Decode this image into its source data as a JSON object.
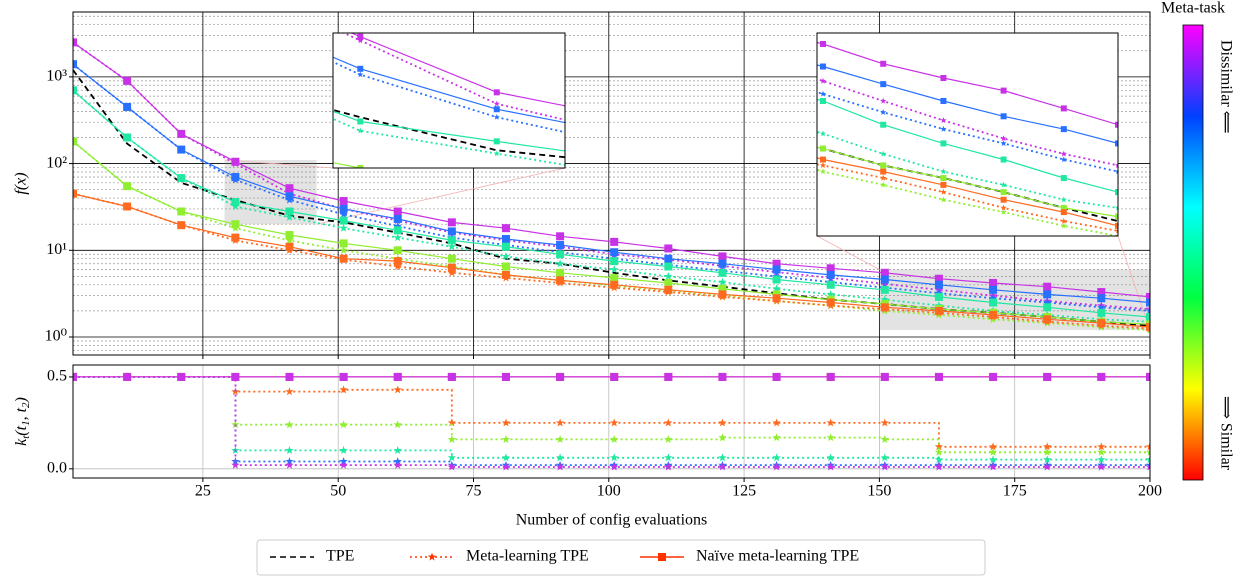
{
  "chart_data": [
    {
      "type": "line",
      "ylabel": "f(x)",
      "xlim": [
        1,
        200
      ],
      "ylim": [
        0.62,
        5600
      ],
      "log_y": true,
      "grid": true,
      "legend": "bottom",
      "xticks": [
        25,
        50,
        75,
        100,
        125,
        150,
        175,
        200
      ],
      "yticks": [
        {
          "value": 1,
          "label": "10⁰"
        },
        {
          "value": 10,
          "label": "10¹"
        },
        {
          "value": 100,
          "label": "10²"
        },
        {
          "value": 1000,
          "label": "10³"
        }
      ],
      "minor_yticks": [
        0.7,
        0.8,
        0.9,
        2,
        3,
        4,
        5,
        6,
        7,
        8,
        9,
        20,
        30,
        40,
        50,
        60,
        70,
        80,
        90,
        200,
        300,
        400,
        500,
        600,
        700,
        800,
        900,
        2000,
        3000,
        4000,
        5000
      ],
      "x": [
        1,
        11,
        21,
        31,
        41,
        51,
        61,
        71,
        81,
        91,
        101,
        111,
        121,
        131,
        141,
        151,
        161,
        171,
        181,
        191,
        200
      ],
      "series": [
        {
          "name": "TPE",
          "color": "#000000",
          "style": "dashed",
          "values": [
            1200,
            170,
            60,
            38,
            25,
            21,
            16,
            12,
            8,
            7,
            5.5,
            4.5,
            3.8,
            3.2,
            2.7,
            2.4,
            2.1,
            1.9,
            1.7,
            1.5,
            1.35
          ]
        },
        {
          "name": "Meta-learning TPE",
          "color": "#ff3300",
          "style": "dotted",
          "marker": "star",
          "tasks": [
            {
              "color": "#c832e6",
              "values": [
                2500,
                900,
                220,
                100,
                45,
                30,
                22,
                16,
                13,
                11,
                9,
                7.8,
                6.6,
                5.6,
                4.8,
                4.1,
                3.5,
                3,
                2.6,
                2.3,
                2.1
              ]
            },
            {
              "color": "#2870ff",
              "values": [
                1400,
                450,
                145,
                65,
                38,
                26,
                19,
                14,
                11.5,
                9.5,
                8,
                6.8,
                5.8,
                5,
                4.3,
                3.7,
                3.2,
                2.8,
                2.5,
                2.2,
                2
              ]
            },
            {
              "color": "#20e8a0",
              "values": [
                700,
                200,
                68,
                32,
                24,
                18,
                14,
                11,
                8.5,
                7,
                6,
                5,
                4.3,
                3.6,
                3.1,
                2.7,
                2.3,
                2,
                1.8,
                1.6,
                1.5
              ]
            },
            {
              "color": "#90ee30",
              "values": [
                180,
                55,
                28,
                18,
                13,
                10,
                8,
                6.5,
                5.2,
                4.5,
                3.9,
                3.4,
                3,
                2.6,
                2.3,
                2,
                1.8,
                1.6,
                1.45,
                1.3,
                1.2
              ]
            },
            {
              "color": "#ff6a20",
              "values": [
                45,
                32,
                19.5,
                13,
                10,
                7.8,
                6.5,
                5.5,
                4.8,
                4.2,
                3.7,
                3.3,
                2.9,
                2.6,
                2.3,
                2.1,
                1.9,
                1.7,
                1.5,
                1.35,
                1.25
              ]
            }
          ]
        },
        {
          "name": "Naïve meta-learning TPE",
          "color": "#ff3300",
          "style": "solid",
          "marker": "square",
          "tasks": [
            {
              "color": "#c832e6",
              "values": [
                2500,
                900,
                220,
                105,
                52,
                37,
                28,
                21,
                18,
                14.5,
                12.5,
                10.5,
                8.5,
                7,
                6.2,
                5.5,
                4.7,
                4.2,
                3.8,
                3.3,
                2.9
              ]
            },
            {
              "color": "#2870ff",
              "values": [
                1400,
                450,
                145,
                70,
                42,
                30,
                23,
                16.5,
                13.5,
                11.5,
                9.5,
                8,
                7,
                6,
                5.2,
                4.6,
                4,
                3.5,
                3.1,
                2.8,
                2.5
              ]
            },
            {
              "color": "#20e8a0",
              "values": [
                700,
                200,
                68,
                36,
                28,
                22,
                17,
                13,
                11,
                9,
                7.5,
                6.5,
                5.5,
                4.6,
                4,
                3.5,
                2.9,
                2.5,
                2.2,
                1.9,
                1.7
              ]
            },
            {
              "color": "#90ee30",
              "values": [
                180,
                55,
                28,
                20,
                15,
                12,
                10,
                8,
                6.5,
                5.5,
                4.8,
                4.2,
                3.6,
                3.1,
                2.7,
                2.4,
                2.1,
                1.9,
                1.7,
                1.5,
                1.4
              ]
            },
            {
              "color": "#ff6a20",
              "values": [
                45,
                32,
                19.5,
                14,
                11,
                8,
                7.5,
                6.3,
                5.2,
                4.5,
                4,
                3.5,
                3.1,
                2.8,
                2.5,
                2.2,
                2,
                1.8,
                1.6,
                1.45,
                1.3
              ]
            }
          ]
        }
      ],
      "insets": [
        {
          "xlim": [
            29,
            46
          ],
          "ylim": [
            20,
            110
          ]
        },
        {
          "xlim": [
            150,
            200
          ],
          "ylim": [
            1.2,
            6
          ]
        }
      ]
    },
    {
      "type": "line",
      "xlabel": "Number of config evaluations",
      "step": "post",
      "ylabel_parts": [
        {
          "text": "k"
        },
        {
          "text": "t",
          "sub": true
        },
        {
          "text": "(t"
        },
        {
          "text": "1",
          "sub": true
        },
        {
          "text": ", t"
        },
        {
          "text": "2",
          "sub": true
        },
        {
          "text": ")"
        }
      ],
      "xlim": [
        1,
        200
      ],
      "ylim": [
        -0.05,
        0.565
      ],
      "grid": true,
      "xticks": [
        25,
        50,
        75,
        100,
        125,
        150,
        175,
        200
      ],
      "yticks": [
        {
          "value": 0,
          "label": "0.0"
        },
        {
          "value": 0.5,
          "label": "0.5"
        }
      ],
      "x": [
        1,
        11,
        21,
        31,
        41,
        51,
        61,
        71,
        81,
        91,
        101,
        111,
        121,
        131,
        141,
        151,
        161,
        171,
        181,
        191,
        200
      ],
      "series": [
        {
          "style": "dotted",
          "marker": "star",
          "tasks": [
            {
              "color": "#ff6a20",
              "values": [
                0.5,
                0.5,
                0.5,
                0.42,
                0.42,
                0.43,
                0.43,
                0.25,
                0.25,
                0.25,
                0.25,
                0.25,
                0.25,
                0.25,
                0.25,
                0.25,
                0.12,
                0.12,
                0.12,
                0.12,
                0.12
              ]
            },
            {
              "color": "#90ee30",
              "values": [
                0.5,
                0.5,
                0.5,
                0.24,
                0.24,
                0.24,
                0.24,
                0.16,
                0.16,
                0.16,
                0.16,
                0.16,
                0.17,
                0.17,
                0.17,
                0.16,
                0.09,
                0.09,
                0.09,
                0.09,
                0.09
              ]
            },
            {
              "color": "#20e8a0",
              "values": [
                0.5,
                0.5,
                0.5,
                0.1,
                0.1,
                0.1,
                0.1,
                0.06,
                0.06,
                0.06,
                0.06,
                0.06,
                0.06,
                0.06,
                0.06,
                0.06,
                0.05,
                0.05,
                0.05,
                0.05,
                0.05
              ]
            },
            {
              "color": "#2870ff",
              "values": [
                0.5,
                0.5,
                0.5,
                0.04,
                0.04,
                0.04,
                0.04,
                0.02,
                0.02,
                0.02,
                0.02,
                0.02,
                0.02,
                0.02,
                0.02,
                0.02,
                0.02,
                0.02,
                0.02,
                0.02,
                0.02
              ]
            },
            {
              "color": "#c832e6",
              "values": [
                0.5,
                0.5,
                0.5,
                0.02,
                0.02,
                0.02,
                0.02,
                0.01,
                0.01,
                0.01,
                0.01,
                0.01,
                0.01,
                0.01,
                0.01,
                0.01,
                0.01,
                0.01,
                0.01,
                0.01,
                0.01
              ]
            }
          ]
        },
        {
          "style": "solid",
          "marker": "square",
          "tasks": [
            {
              "color": "#ff6a20",
              "values": [
                0.5,
                0.5,
                0.5,
                0.5,
                0.5,
                0.5,
                0.5,
                0.5,
                0.5,
                0.5,
                0.5,
                0.5,
                0.5,
                0.5,
                0.5,
                0.5,
                0.5,
                0.5,
                0.5,
                0.5,
                0.5
              ]
            },
            {
              "color": "#c832e6",
              "values": [
                0.5,
                0.5,
                0.5,
                0.5,
                0.5,
                0.5,
                0.5,
                0.5,
                0.5,
                0.5,
                0.5,
                0.5,
                0.5,
                0.5,
                0.5,
                0.5,
                0.5,
                0.5,
                0.5,
                0.5,
                0.5
              ]
            }
          ]
        }
      ]
    }
  ],
  "colorbar": {
    "title": "Meta-task",
    "top_label": "Dissimilar ⟸",
    "bottom_label": "⟹ Similar",
    "colors": [
      "#ff00ff",
      "#0040ff",
      "#00ffff",
      "#00ff40",
      "#ffff00",
      "#ff0000"
    ]
  }
}
